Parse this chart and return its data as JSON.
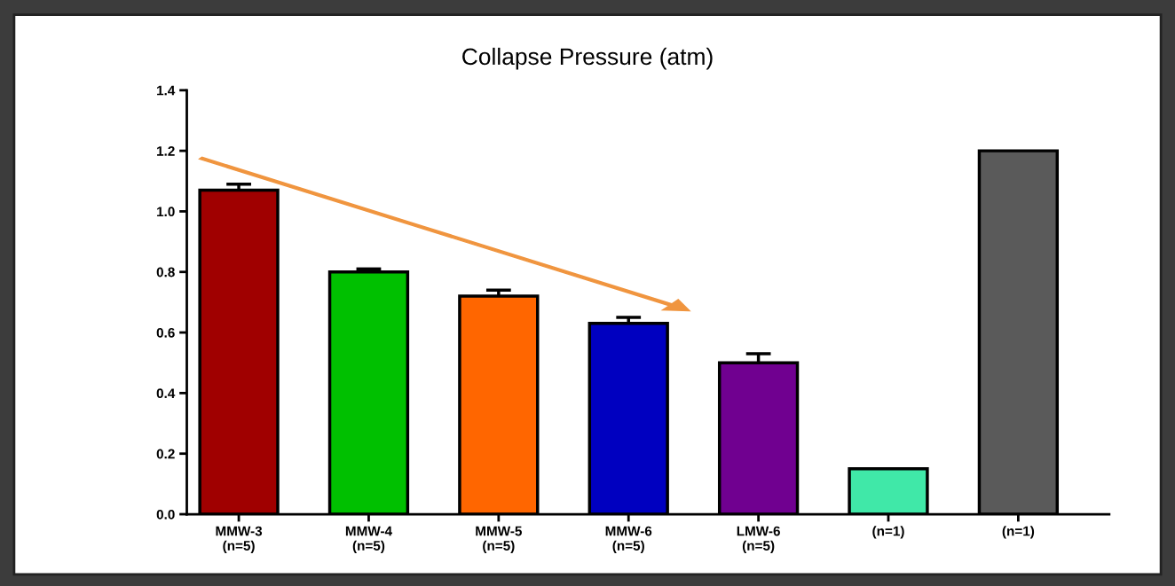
{
  "chart_data": {
    "type": "bar",
    "title": "Collapse Pressure (atm)",
    "categories": [
      "MMW-3\n(n=5)",
      "MMW-4\n(n=5)",
      "MMW-5\n(n=5)",
      "MMW-6\n(n=5)",
      "LMW-6\n(n=5)",
      "(n=1)",
      "(n=1)"
    ],
    "values": [
      1.07,
      0.8,
      0.72,
      0.63,
      0.5,
      0.15,
      1.2
    ],
    "errors": [
      0.02,
      0.01,
      0.02,
      0.02,
      0.03,
      null,
      null
    ],
    "colors": [
      "#a00000",
      "#00c000",
      "#ff6600",
      "#0000c0",
      "#700090",
      "#40e8a8",
      "#5a5a5a"
    ],
    "ylim": [
      0,
      1.4
    ],
    "yticks": [
      {
        "value": 0,
        "label": "0.0"
      },
      0.2,
      0.4,
      0.6,
      0.8,
      {
        "value": 1,
        "label": "1.0"
      },
      1.2,
      1.4
    ],
    "grid": false,
    "legend": false
  }
}
